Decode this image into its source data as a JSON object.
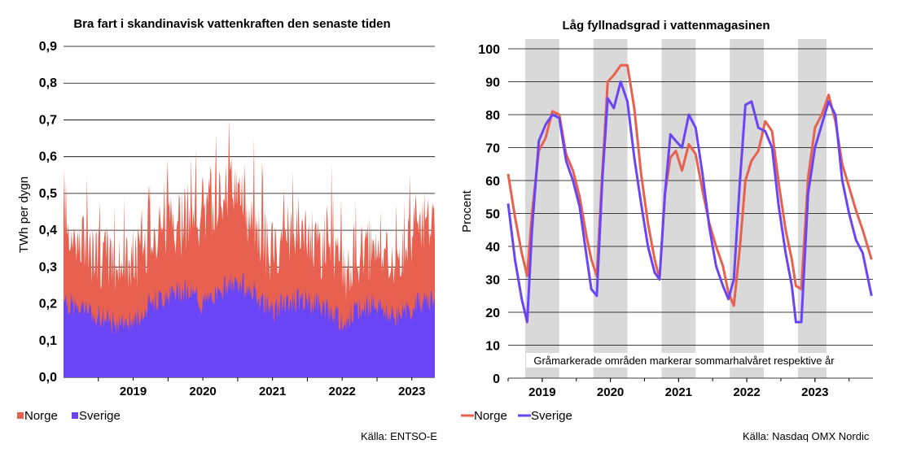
{
  "colors": {
    "norge": "#e8604f",
    "sverige": "#6a45f5",
    "band": "#d9d9d9",
    "grid": "#000000"
  },
  "chart_data": [
    {
      "type": "area",
      "title": "Bra fart i skandinavisk vattenkraften den senaste tiden",
      "ylabel": "TWh per dygn",
      "ylim": [
        0,
        0.9
      ],
      "yticks": [
        "0,0",
        "0,1",
        "0,2",
        "0,3",
        "0,4",
        "0,5",
        "0,6",
        "0,7",
        "0,8",
        "0,9"
      ],
      "xticks": [
        "2019",
        "2020",
        "2021",
        "2022",
        "2023"
      ],
      "xrange": [
        2018.5,
        2023.83
      ],
      "stacked": true,
      "series": [
        {
          "name": "Sverige",
          "x": [
            2018.5,
            2018.75,
            2019.0,
            2019.25,
            2019.5,
            2019.75,
            2020.0,
            2020.25,
            2020.5,
            2020.75,
            2021.0,
            2021.25,
            2021.5,
            2021.75,
            2022.0,
            2022.25,
            2022.5,
            2022.75,
            2023.0,
            2023.25,
            2023.5,
            2023.83
          ],
          "values": [
            0.21,
            0.18,
            0.17,
            0.14,
            0.15,
            0.2,
            0.22,
            0.24,
            0.2,
            0.24,
            0.26,
            0.23,
            0.18,
            0.21,
            0.21,
            0.19,
            0.15,
            0.19,
            0.2,
            0.16,
            0.19,
            0.22
          ]
        },
        {
          "name": "Norge",
          "x": [
            2018.5,
            2018.75,
            2019.0,
            2019.25,
            2019.5,
            2019.75,
            2020.0,
            2020.25,
            2020.5,
            2020.75,
            2021.0,
            2021.25,
            2021.5,
            2021.75,
            2022.0,
            2022.25,
            2022.5,
            2022.75,
            2023.0,
            2023.25,
            2023.5,
            2023.83
          ],
          "values": [
            0.16,
            0.15,
            0.15,
            0.14,
            0.14,
            0.17,
            0.19,
            0.17,
            0.21,
            0.24,
            0.23,
            0.15,
            0.14,
            0.16,
            0.15,
            0.14,
            0.13,
            0.15,
            0.14,
            0.13,
            0.17,
            0.2
          ]
        }
      ],
      "legend": {
        "position": "bottom-left",
        "items": [
          "Norge",
          "Sverige"
        ]
      },
      "source": "Källa: ENTSO-E"
    },
    {
      "type": "line",
      "title": "Låg fyllnadsgrad i vattenmagasinen",
      "ylabel": "Procent",
      "ylim": [
        0,
        100
      ],
      "yticks": [
        "0",
        "10",
        "20",
        "30",
        "40",
        "50",
        "60",
        "70",
        "80",
        "90",
        "100"
      ],
      "xticks": [
        "2019",
        "2020",
        "2021",
        "2022",
        "2023"
      ],
      "xrange": [
        2018.5,
        2023.85
      ],
      "shaded_periods": [
        [
          2018.75,
          2019.25
        ],
        [
          2019.75,
          2020.25
        ],
        [
          2020.75,
          2021.25
        ],
        [
          2021.75,
          2022.25
        ],
        [
          2022.75,
          2023.17
        ]
      ],
      "annotation": "Gråmarkerade områden markerar sommarhalvåret respektive år",
      "series": [
        {
          "name": "Norge",
          "x": [
            2018.5,
            2018.6,
            2018.7,
            2018.78,
            2018.85,
            2018.95,
            2019.05,
            2019.15,
            2019.25,
            2019.35,
            2019.45,
            2019.55,
            2019.65,
            2019.72,
            2019.8,
            2019.88,
            2019.96,
            2020.05,
            2020.15,
            2020.25,
            2020.35,
            2020.45,
            2020.55,
            2020.65,
            2020.72,
            2020.8,
            2020.88,
            2020.96,
            2021.05,
            2021.15,
            2021.25,
            2021.35,
            2021.45,
            2021.55,
            2021.65,
            2021.73,
            2021.81,
            2021.9,
            2021.98,
            2022.07,
            2022.17,
            2022.27,
            2022.37,
            2022.47,
            2022.57,
            2022.66,
            2022.72,
            2022.8,
            2022.9,
            2023.0,
            2023.1,
            2023.2,
            2023.3,
            2023.4,
            2023.5,
            2023.6,
            2023.7,
            2023.83
          ],
          "values": [
            62,
            49,
            38,
            31,
            50,
            69,
            73,
            81,
            80,
            68,
            63,
            55,
            43,
            36,
            31,
            62,
            90,
            92,
            95,
            95,
            82,
            62,
            47,
            36,
            30,
            56,
            67,
            69,
            63,
            71,
            68,
            57,
            47,
            40,
            34,
            26,
            22,
            40,
            60,
            66,
            69,
            78,
            75,
            59,
            45,
            36,
            28,
            27,
            61,
            76,
            80,
            86,
            78,
            65,
            58,
            51,
            45,
            36
          ]
        },
        {
          "name": "Sverige",
          "x": [
            2018.5,
            2018.6,
            2018.7,
            2018.78,
            2018.85,
            2018.95,
            2019.05,
            2019.15,
            2019.25,
            2019.35,
            2019.45,
            2019.55,
            2019.65,
            2019.72,
            2019.8,
            2019.88,
            2019.96,
            2020.05,
            2020.15,
            2020.25,
            2020.35,
            2020.45,
            2020.55,
            2020.65,
            2020.72,
            2020.8,
            2020.88,
            2020.96,
            2021.05,
            2021.15,
            2021.25,
            2021.35,
            2021.45,
            2021.55,
            2021.65,
            2021.73,
            2021.81,
            2021.9,
            2021.98,
            2022.07,
            2022.17,
            2022.27,
            2022.37,
            2022.47,
            2022.57,
            2022.66,
            2022.72,
            2022.8,
            2022.9,
            2023.0,
            2023.1,
            2023.2,
            2023.3,
            2023.4,
            2023.5,
            2023.6,
            2023.7,
            2023.83
          ],
          "values": [
            53,
            36,
            24,
            17,
            45,
            72,
            77,
            80,
            79,
            66,
            60,
            52,
            37,
            27,
            25,
            60,
            85,
            82,
            90,
            84,
            67,
            53,
            40,
            32,
            30,
            56,
            74,
            72,
            70,
            80,
            76,
            62,
            46,
            34,
            28,
            24,
            30,
            60,
            83,
            84,
            76,
            75,
            70,
            52,
            38,
            28,
            17,
            17,
            56,
            70,
            77,
            84,
            80,
            60,
            50,
            42,
            38,
            25
          ]
        }
      ],
      "legend": {
        "position": "bottom-left",
        "items": [
          "Norge",
          "Sverige"
        ]
      },
      "source": "Källa: Nasdaq OMX Nordic"
    }
  ]
}
